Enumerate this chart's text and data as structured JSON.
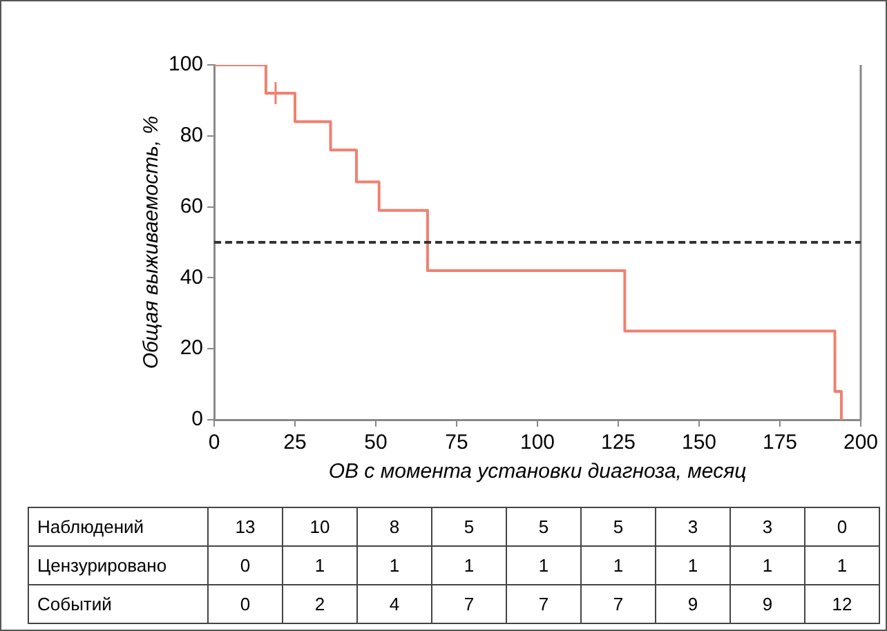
{
  "chart_data": {
    "type": "step",
    "xlabel": "ОВ с момента установки диагноза, месяц",
    "ylabel": "Общая выживаемость, %",
    "xlim": [
      0,
      200
    ],
    "xticks": [
      0,
      25,
      50,
      75,
      100,
      125,
      150,
      175,
      200
    ],
    "ylim": [
      0,
      100
    ],
    "yticks": [
      0,
      20,
      40,
      60,
      80,
      100
    ],
    "grid": false,
    "legend": false,
    "series": [
      {
        "type": "step",
        "color": "#f08070",
        "x": [
          0,
          16,
          25,
          36,
          44,
          51,
          66,
          127,
          192,
          194
        ],
        "values": [
          100,
          92,
          84,
          76,
          67,
          59,
          42,
          25,
          8,
          0
        ]
      },
      {
        "type": "scatter",
        "marker": "cross",
        "color": "#f08070",
        "x": [
          19
        ],
        "values": [
          92
        ]
      }
    ],
    "ref_lines": [
      {
        "axis": "y",
        "value": 50,
        "color": "#333333",
        "line_style": "dashed"
      }
    ],
    "annotations": [
      "Наблюдений",
      "13",
      "10",
      "8",
      "5",
      "5",
      "5",
      "3",
      "3",
      "0",
      "Цензурировано",
      "0",
      "1",
      "1",
      "1",
      "1",
      "1",
      "1",
      "1",
      "1",
      "Событий",
      "0",
      "2",
      "4",
      "7",
      "7",
      "7",
      "9",
      "9",
      "12"
    ]
  }
}
